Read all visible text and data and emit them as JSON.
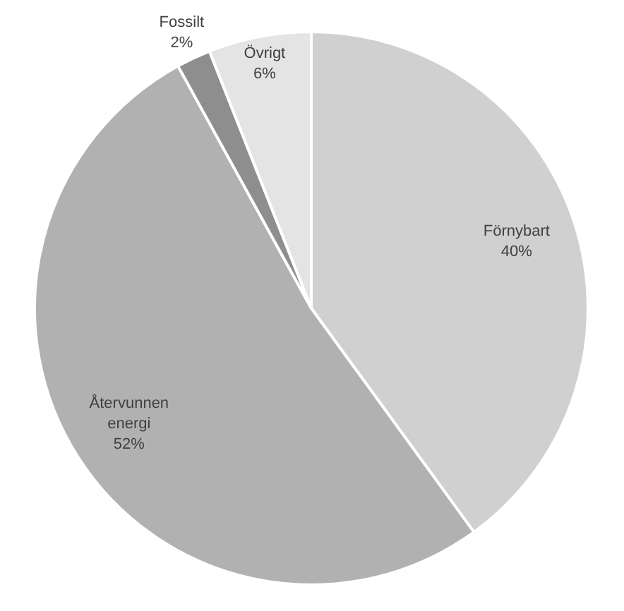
{
  "chart_data": {
    "type": "pie",
    "categories": [
      "Förnybart",
      "Återvunnen energi",
      "Fossilt",
      "Övrigt"
    ],
    "values": [
      40,
      52,
      2,
      6
    ],
    "value_labels": [
      "40%",
      "52%",
      "2%",
      "6%"
    ],
    "colors": [
      "#d0d0d0",
      "#b1b1b1",
      "#8e8e8e",
      "#e4e4e4"
    ],
    "legend": false
  }
}
